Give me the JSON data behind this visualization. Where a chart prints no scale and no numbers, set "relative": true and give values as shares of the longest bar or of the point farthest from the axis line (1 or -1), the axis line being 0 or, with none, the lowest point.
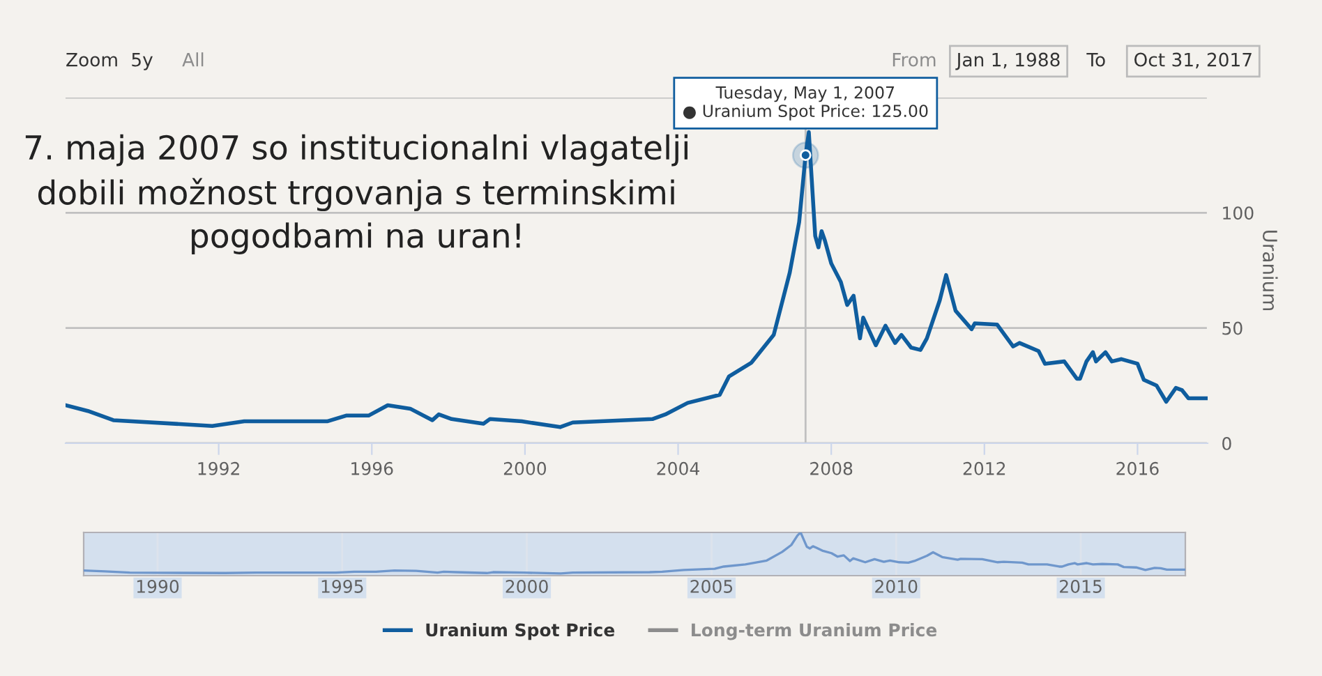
{
  "chart_data": [
    {
      "type": "line",
      "ylabel": "Uranium",
      "grid": "y",
      "legend": "bottom",
      "marker": "none",
      "line_style": "solid",
      "annotations": [
        "7. maja 2007 so institucionalni vlagatelji\ndobili možnost trgovanja s terminskimi\npogodbami na uran!",
        {
          "text": "Tuesday, May 1, 2007\n● Uranium Spot Price: 125.00",
          "x": "2007-05-01",
          "y": 125
        },
        "Zoom",
        "5y",
        "All",
        "From",
        "Jan 1, 1988",
        "To",
        "Oct 31, 2017"
      ],
      "ref_lines": [
        {
          "axis": "x",
          "value": "2007-05-01",
          "label": null,
          "color": "#c0c0c0"
        }
      ],
      "xlim": [
        "1988-01-01",
        "2017-10-31"
      ],
      "xticks": [
        {
          "value": "1992",
          "label": "1992"
        },
        {
          "value": "1996",
          "label": "1996"
        },
        {
          "value": "2000",
          "label": "2000"
        },
        {
          "value": "2004",
          "label": "2004"
        },
        {
          "value": "2008",
          "label": "2008"
        },
        {
          "value": "2012",
          "label": "2012"
        },
        {
          "value": "2016",
          "label": "2016"
        }
      ],
      "ylim": [
        0,
        150
      ],
      "yticks": [
        0,
        50,
        100,
        {
          "value": 150,
          "label": null
        }
      ],
      "series": [
        {
          "name": "Uranium Spot Price",
          "color": "#0f5d9e",
          "x": [
            "1988-01",
            "1988-08",
            "1989-04",
            "1991-11",
            "1992-09",
            "1994-11",
            "1995-05",
            "1995-12",
            "1996-06",
            "1997-01",
            "1997-08",
            "1997-10",
            "1998-02",
            "1998-12",
            "1999-02",
            "1999-12",
            "2000-12",
            "2001-04",
            "2003-05",
            "2003-09",
            "2004-04",
            "2005-02",
            "2005-05",
            "2005-12",
            "2006-07",
            "2006-12",
            "2007-03",
            "2007-05-01",
            "2007-06",
            "2007-08",
            "2007-09",
            "2007-10",
            "2007-11",
            "2008-01",
            "2008-04",
            "2008-06",
            "2008-08",
            "2008-10",
            "2008-11",
            "2009-03",
            "2009-06",
            "2009-09",
            "2009-11",
            "2010-02",
            "2010-05",
            "2010-07",
            "2010-11",
            "2011-01",
            "2011-04",
            "2011-09",
            "2011-10",
            "2012-05",
            "2012-10",
            "2012-12",
            "2013-06",
            "2013-08",
            "2014-02",
            "2014-06",
            "2014-07",
            "2014-09",
            "2014-11",
            "2014-12",
            "2015-03",
            "2015-05",
            "2015-08",
            "2016-01",
            "2016-03",
            "2016-07",
            "2016-10",
            "2017-01",
            "2017-03",
            "2017-05",
            "2017-10-31"
          ],
          "values": [
            16.5,
            14,
            10,
            7.5,
            9.5,
            9.5,
            12,
            12,
            16.5,
            15,
            10,
            12.5,
            10.5,
            8.5,
            10.5,
            9.5,
            7,
            9,
            10.5,
            12.5,
            17.5,
            21,
            29,
            35,
            47,
            74,
            96,
            125,
            135,
            90,
            85,
            92,
            88,
            78,
            70,
            60,
            64,
            45.5,
            54.5,
            42.5,
            51,
            43.5,
            47,
            41.5,
            40.5,
            45.5,
            62,
            73,
            57.5,
            49.5,
            52,
            51.5,
            42,
            43.5,
            40,
            34.5,
            35.5,
            28,
            28,
            35.5,
            39.5,
            35.5,
            39.5,
            35.5,
            36.5,
            34.5,
            27.5,
            25,
            18,
            24,
            23,
            19.5,
            19.5
          ]
        },
        {
          "name": "Long-term Uranium Price",
          "color": "#8c8c8c"
        }
      ]
    },
    {
      "type": "line",
      "relative": true,
      "tick_labels": "x",
      "grid": "x",
      "xlim": [
        "1988-01-01",
        "2017-10-31"
      ],
      "xticks": [
        {
          "value": "1990",
          "label": "1990"
        },
        {
          "value": "1995",
          "label": "1995"
        },
        {
          "value": "2000",
          "label": "2000"
        },
        {
          "value": "2005",
          "label": "2005"
        },
        {
          "value": "2010",
          "label": "2010"
        },
        {
          "value": "2015",
          "label": "2015"
        }
      ],
      "bands": [
        {
          "axis": "x",
          "from": "1988-01-01",
          "to": "2017-10-31",
          "label": null,
          "color": "#d4e0ee"
        }
      ],
      "series": [
        {
          "color": "#6f97cc",
          "x": [
            "1988-01",
            "1988-08",
            "1989-04",
            "1991-11",
            "1992-09",
            "1994-11",
            "1995-05",
            "1995-12",
            "1996-06",
            "1997-01",
            "1997-08",
            "1997-10",
            "1998-02",
            "1998-12",
            "1999-02",
            "1999-12",
            "2000-12",
            "2001-04",
            "2003-05",
            "2003-09",
            "2004-04",
            "2005-02",
            "2005-05",
            "2005-12",
            "2006-07",
            "2006-12",
            "2007-03",
            "2007-05-01",
            "2007-06",
            "2007-08",
            "2007-09",
            "2007-10",
            "2007-11",
            "2008-01",
            "2008-04",
            "2008-06",
            "2008-08",
            "2008-10",
            "2008-11",
            "2009-03",
            "2009-06",
            "2009-09",
            "2009-11",
            "2010-02",
            "2010-05",
            "2010-07",
            "2010-11",
            "2011-01",
            "2011-04",
            "2011-09",
            "2011-10",
            "2012-05",
            "2012-10",
            "2012-12",
            "2013-06",
            "2013-08",
            "2014-02",
            "2014-06",
            "2014-07",
            "2014-09",
            "2014-11",
            "2014-12",
            "2015-03",
            "2015-05",
            "2015-08",
            "2016-01",
            "2016-03",
            "2016-07",
            "2016-10",
            "2017-01",
            "2017-03",
            "2017-05",
            "2017-10-31"
          ],
          "values": [
            0.12,
            0.1,
            0.07,
            0.06,
            0.07,
            0.07,
            0.09,
            0.09,
            0.12,
            0.11,
            0.07,
            0.09,
            0.08,
            0.06,
            0.08,
            0.07,
            0.05,
            0.07,
            0.08,
            0.09,
            0.13,
            0.16,
            0.21,
            0.26,
            0.35,
            0.55,
            0.71,
            0.93,
            1,
            0.67,
            0.63,
            0.68,
            0.65,
            0.58,
            0.52,
            0.44,
            0.47,
            0.34,
            0.4,
            0.31,
            0.38,
            0.32,
            0.35,
            0.31,
            0.3,
            0.34,
            0.46,
            0.54,
            0.43,
            0.37,
            0.39,
            0.38,
            0.31,
            0.32,
            0.3,
            0.26,
            0.26,
            0.21,
            0.21,
            0.26,
            0.29,
            0.26,
            0.29,
            0.26,
            0.27,
            0.26,
            0.2,
            0.19,
            0.13,
            0.18,
            0.17,
            0.14,
            0.14
          ]
        }
      ]
    }
  ]
}
